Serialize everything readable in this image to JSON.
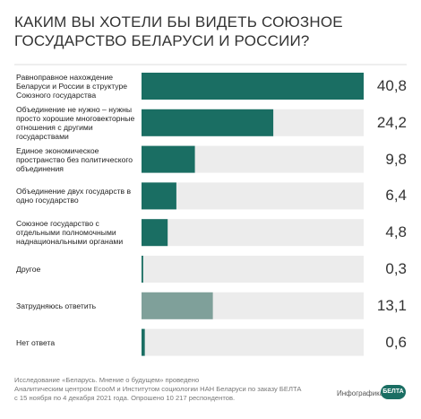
{
  "chart_data": {
    "type": "bar",
    "orientation": "horizontal",
    "title": "КАКИМ ВЫ ХОТЕЛИ БЫ ВИДЕТЬ СОЮЗНОЕ ГОСУДАРСТВО БЕЛАРУСИ И РОССИИ?",
    "categories": [
      "Равноправное нахождение Беларуси и России в структуре Союзного государства",
      "Объединение не нужно – нужны просто хорошие многовекторные отношения с другими государствами",
      "Единое экономическое пространство без политического объединения",
      "Объединение двух государств в одно государство",
      "Союзное государство с отдельными полномочными наднациональными органами",
      "Другое",
      "Затрудняюсь ответить",
      "Нет ответа"
    ],
    "values": [
      40.8,
      24.2,
      9.8,
      6.4,
      4.8,
      0.3,
      13.1,
      0.6
    ],
    "value_labels": [
      "40,8",
      "24,2",
      "9,8",
      "6,4",
      "4,8",
      "0,3",
      "13,1",
      "0,6"
    ],
    "colors": [
      "#1a6e63",
      "#1a6e63",
      "#1a6e63",
      "#1a6e63",
      "#1a6e63",
      "#1a6e63",
      "#7fa09a",
      "#1a6e63"
    ],
    "xlim": [
      0,
      40.8
    ]
  },
  "footer": {
    "source": [
      "Исследование «Беларусь. Мнение о будущем» проведено",
      "Аналитическим центром EcooM и Институтом социологии НАН Беларуси по заказу БЕЛТА",
      "с 15 ноября по 4 декабря 2021 года. Опрошено 10 217 респондентов."
    ],
    "credit": "Инфографика",
    "logo": "БЕЛТА"
  }
}
